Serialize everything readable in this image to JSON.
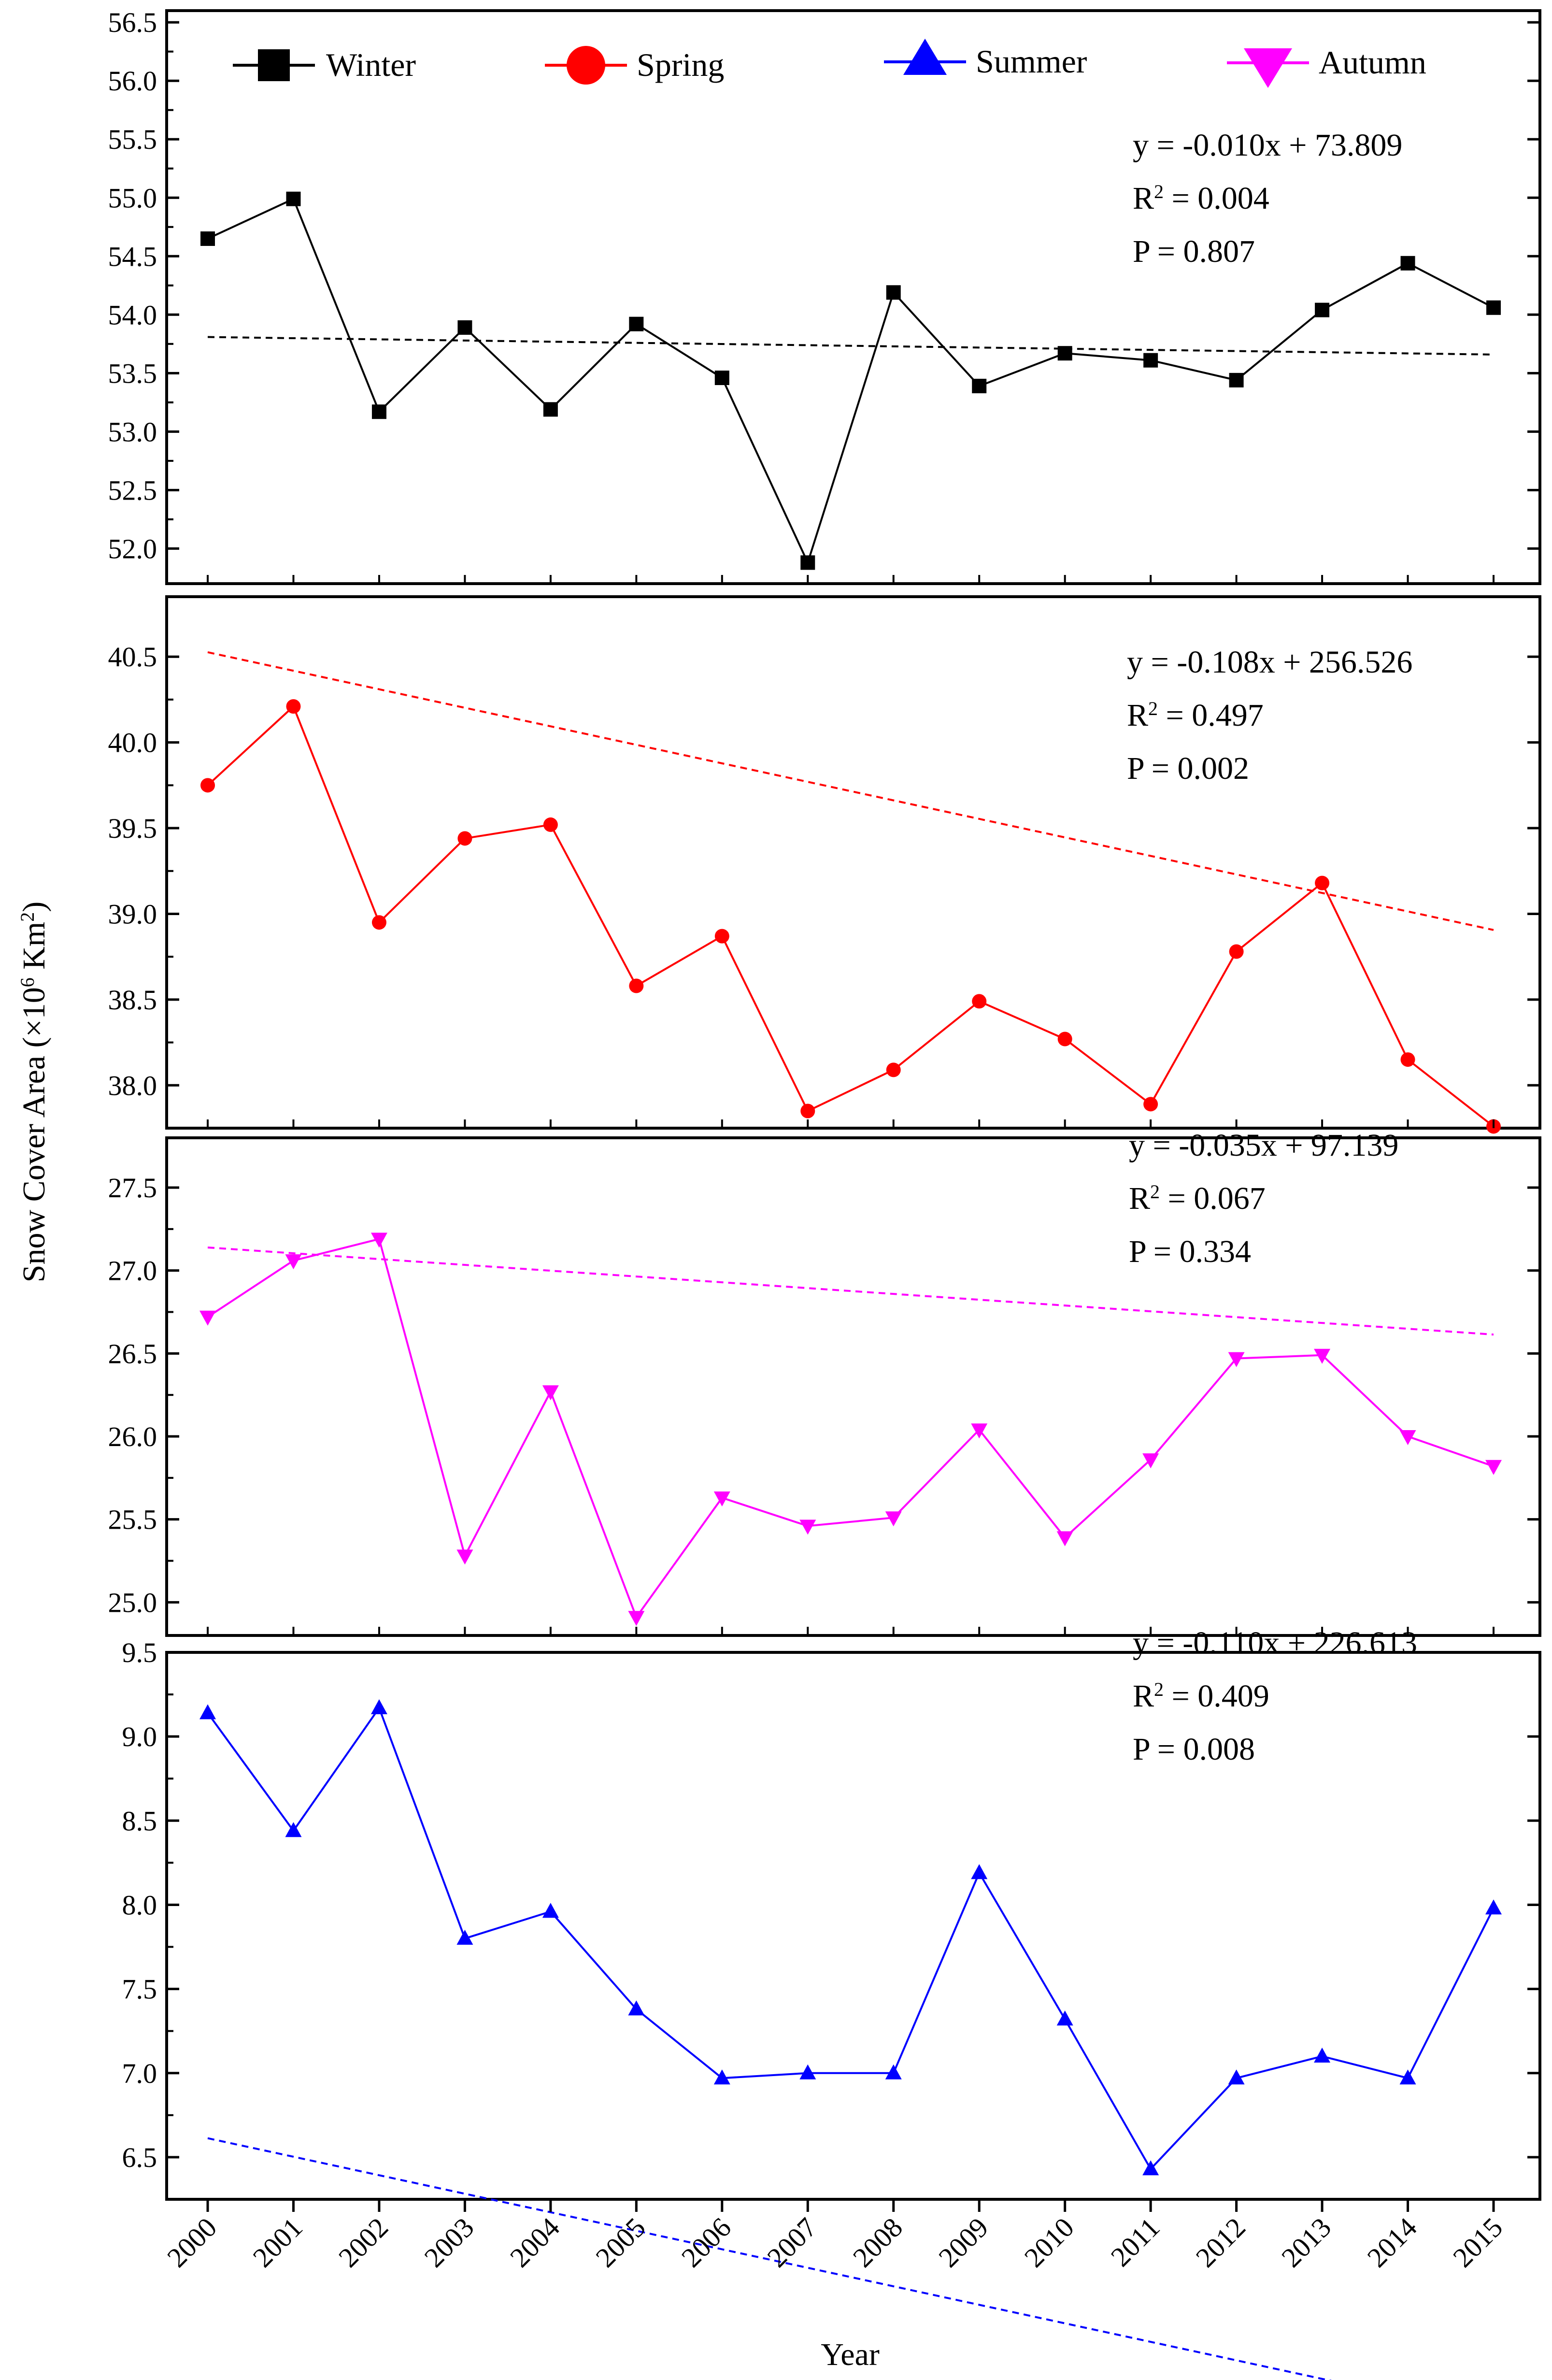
{
  "chart_data": {
    "type": "line",
    "title": "",
    "xlabel": "Year",
    "ylabel": "Snow Cover Area (×10",
    "ylabel_sup": "6",
    "ylabel_unit": " Km",
    "ylabel_unit_sup": "2",
    "ylabel_close": ")",
    "x": [
      2000,
      2001,
      2002,
      2003,
      2004,
      2005,
      2006,
      2007,
      2008,
      2009,
      2010,
      2011,
      2012,
      2013,
      2014,
      2015
    ],
    "legend": {
      "placement": "top",
      "entries": [
        {
          "name": "Winter",
          "marker": "square",
          "color": "#000000"
        },
        {
          "name": "Spring",
          "marker": "circle",
          "color": "#ff0000"
        },
        {
          "name": "Summer",
          "marker": "triangle-up",
          "color": "#0000ff"
        },
        {
          "name": "Autumn",
          "marker": "triangle-down",
          "color": "#ff00ff"
        }
      ]
    },
    "series": [
      {
        "name": "Winter",
        "color": "#000000",
        "marker": "square",
        "values": [
          54.65,
          54.99,
          53.17,
          53.89,
          53.19,
          53.92,
          53.46,
          51.88,
          54.19,
          53.39,
          53.67,
          53.61,
          53.44,
          54.04,
          54.44,
          54.06
        ],
        "ylim": [
          51.7,
          56.6
        ],
        "yticks": [
          "52.0",
          "52.5",
          "53.0",
          "53.5",
          "54.0",
          "54.5",
          "55.0",
          "55.5",
          "56.0",
          "56.5"
        ],
        "trend": {
          "slope": -0.01,
          "intercept": 73.809
        },
        "equation": {
          "line": "y = -0.010x + 73.809",
          "r_prefix": "R",
          "r_sup": "2",
          "r_value": " = 0.004",
          "p": "P = 0.807"
        }
      },
      {
        "name": "Spring",
        "color": "#ff0000",
        "marker": "circle",
        "values": [
          39.75,
          40.21,
          38.95,
          39.44,
          39.52,
          38.58,
          38.87,
          37.85,
          38.09,
          38.49,
          38.27,
          37.89,
          38.78,
          39.18,
          38.15,
          37.76
        ],
        "ylim": [
          37.75,
          40.85
        ],
        "yticks": [
          "38.0",
          "38.5",
          "39.0",
          "39.5",
          "40.0",
          "40.5"
        ],
        "trend": {
          "slope": -0.108,
          "intercept": 256.526
        },
        "equation": {
          "line": "y = -0.108x + 256.526",
          "r_prefix": "R",
          "r_sup": "2",
          "r_value": " = 0.497",
          "p": "P = 0.002"
        }
      },
      {
        "name": "Autumn",
        "color": "#ff00ff",
        "marker": "triangle-down",
        "values": [
          26.72,
          27.06,
          27.19,
          25.28,
          26.27,
          24.91,
          25.63,
          25.46,
          25.51,
          26.04,
          25.39,
          25.86,
          26.47,
          26.49,
          26.0,
          25.82
        ],
        "ylim": [
          24.8,
          27.8
        ],
        "yticks": [
          "25.0",
          "25.5",
          "26.0",
          "26.5",
          "27.0",
          "27.5"
        ],
        "trend": {
          "slope": -0.035,
          "intercept": 97.139
        },
        "equation": {
          "line": "y = -0.035x + 97.139",
          "r_prefix": "R",
          "r_sup": "2",
          "r_value": " = 0.067",
          "p": "P = 0.334"
        }
      },
      {
        "name": "Summer",
        "color": "#0000ff",
        "marker": "triangle-up",
        "values": [
          9.14,
          8.44,
          9.17,
          7.8,
          7.96,
          7.38,
          6.97,
          7.0,
          7.0,
          8.19,
          7.32,
          6.43,
          6.97,
          7.1,
          6.97,
          7.98
        ],
        "ylim": [
          6.25,
          9.5
        ],
        "yticks": [
          "6.5",
          "7.0",
          "7.5",
          "8.0",
          "8.5",
          "9.0",
          "9.5"
        ],
        "trend": {
          "slope": -0.11,
          "intercept": 226.613
        },
        "equation": {
          "line": "y = -0.110x + 226.613",
          "r_prefix": "R",
          "r_sup": "2",
          "r_value": " = 0.409",
          "p": "P = 0.008"
        }
      }
    ]
  }
}
